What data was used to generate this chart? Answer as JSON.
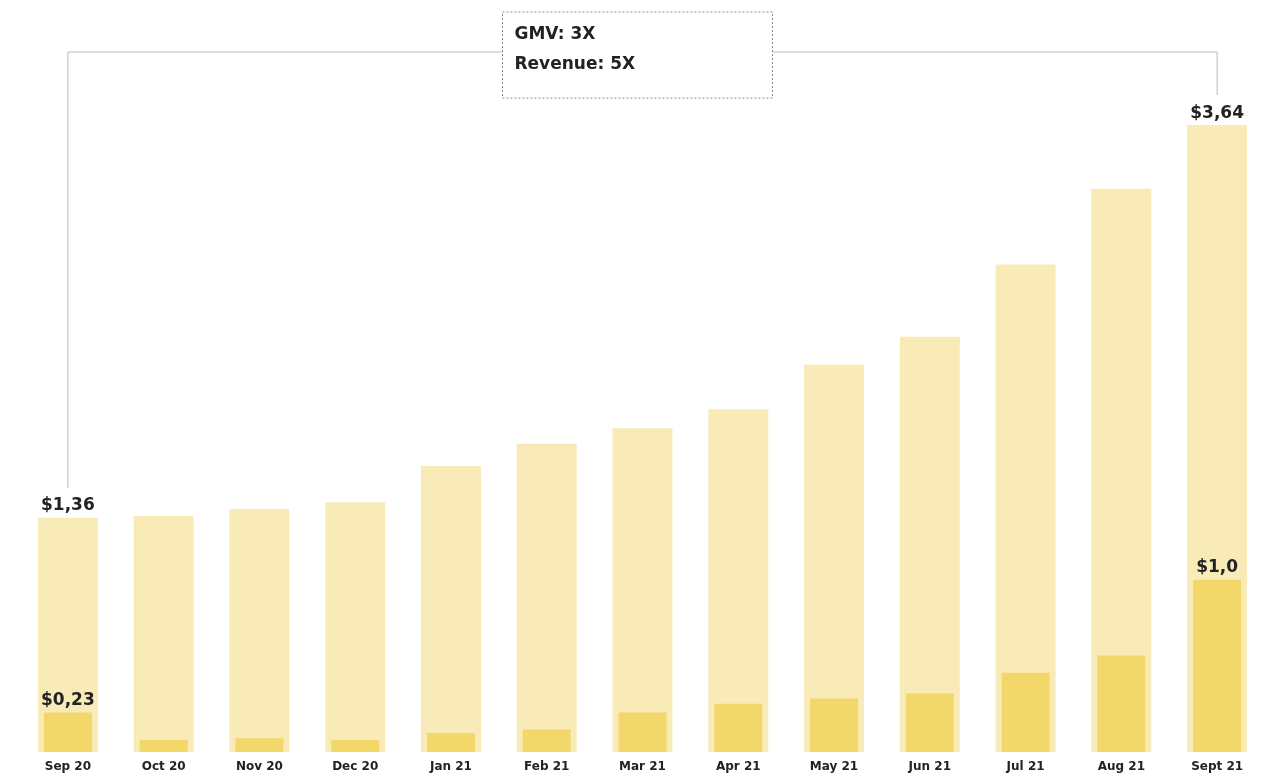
{
  "chart_data": {
    "type": "bar",
    "categories": [
      "Sep 20",
      "Oct 20",
      "Nov 20",
      "Dec 20",
      "Jan 21",
      "Feb 21",
      "Mar 21",
      "Apr 21",
      "May 21",
      "Jun 21",
      "Jul 21",
      "Aug 21",
      "Sept 21"
    ],
    "series": [
      {
        "color": "#f8ebb8",
        "values": [
          1.36,
          1.37,
          1.41,
          1.45,
          1.66,
          1.79,
          1.88,
          1.99,
          2.25,
          2.41,
          2.83,
          3.27,
          3.64
        ],
        "value_labels": [
          "$1,36",
          null,
          null,
          null,
          null,
          null,
          null,
          null,
          null,
          null,
          null,
          null,
          "$3,64"
        ]
      },
      {
        "color": "#f2d86a",
        "values": [
          0.23,
          0.07,
          0.08,
          0.07,
          0.11,
          0.13,
          0.23,
          0.28,
          0.31,
          0.34,
          0.46,
          0.56,
          1.0
        ],
        "value_labels": [
          "$0,23",
          null,
          null,
          null,
          null,
          null,
          null,
          null,
          null,
          null,
          null,
          null,
          "$1,0"
        ]
      }
    ],
    "annotations": [
      "GMV: 3X",
      "Revenue: 5X"
    ]
  }
}
